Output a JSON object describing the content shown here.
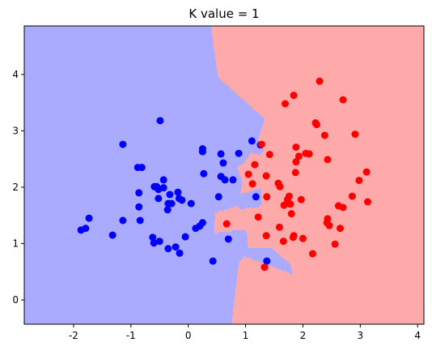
{
  "chart_data": {
    "type": "scatter",
    "title": "K value = 1",
    "xlim": [
      -2.86,
      4.11
    ],
    "ylim": [
      -0.43,
      4.86
    ],
    "xticks": [
      -2,
      -1,
      0,
      1,
      2,
      3,
      4
    ],
    "yticks": [
      0,
      1,
      2,
      3,
      4
    ],
    "series": [
      {
        "color": "#0000ff",
        "region_color": "#aaaaff",
        "x": [
          -1.87,
          -1.79,
          -1.73,
          -1.32,
          -1.14,
          -1.14,
          -0.88,
          -0.81,
          -0.86,
          -0.86,
          -0.84,
          -0.59,
          -0.55,
          -0.52,
          -0.52,
          -0.5,
          -0.6,
          -0.62,
          -0.49,
          -0.43,
          -0.43,
          -0.36,
          -0.35,
          -0.35,
          -0.32,
          -0.29,
          -0.22,
          -0.18,
          -0.15,
          -0.11,
          -0.16,
          -0.05,
          0.05,
          0.13,
          0.2,
          0.25,
          0.25,
          0.25,
          0.27,
          0.43,
          0.53,
          0.57,
          0.57,
          0.64,
          0.61,
          0.7,
          0.78,
          0.88,
          1.11,
          1.18,
          1.26,
          1.37
        ],
        "y": [
          1.24,
          1.27,
          1.45,
          1.15,
          2.76,
          1.41,
          2.35,
          2.35,
          1.9,
          1.65,
          1.41,
          2.01,
          2.01,
          1.8,
          1.96,
          1.04,
          1.01,
          1.11,
          3.18,
          2.13,
          1.99,
          1.6,
          1.71,
          0.91,
          1.87,
          1.71,
          0.94,
          1.91,
          0.83,
          1.77,
          1.8,
          1.12,
          1.71,
          1.27,
          1.31,
          1.37,
          2.68,
          2.63,
          2.24,
          0.69,
          1.83,
          2.59,
          2.19,
          2.13,
          2.43,
          1.08,
          2.13,
          2.6,
          2.82,
          1.83,
          2.75,
          0.69
        ]
      },
      {
        "color": "#ff0000",
        "region_color": "#ffaaaa",
        "x": [
          0.67,
          1.05,
          1.16,
          1.12,
          1.22,
          1.28,
          1.36,
          1.37,
          1.36,
          1.42,
          1.33,
          1.57,
          1.6,
          1.59,
          1.66,
          1.69,
          1.73,
          1.67,
          1.76,
          1.78,
          1.84,
          1.8,
          1.84,
          1.87,
          1.88,
          1.88,
          1.93,
          1.83,
          1.97,
          2.0,
          2.05,
          2.11,
          2.17,
          2.22,
          2.24,
          2.29,
          2.38,
          2.42,
          2.43,
          2.43,
          2.46,
          2.56,
          2.62,
          2.65,
          2.7,
          2.7,
          2.86,
          2.91,
          2.98,
          3.11,
          3.13
        ],
        "y": [
          1.35,
          2.23,
          2.4,
          2.06,
          1.47,
          2.76,
          2.2,
          1.83,
          1.14,
          2.58,
          0.58,
          2.07,
          2.01,
          1.29,
          1.04,
          3.48,
          1.78,
          1.68,
          1.84,
          1.7,
          3.63,
          1.53,
          1.14,
          2.26,
          2.71,
          2.45,
          2.55,
          1.11,
          1.78,
          1.09,
          2.6,
          2.59,
          0.82,
          3.14,
          3.11,
          3.88,
          2.92,
          1.37,
          1.44,
          2.49,
          1.32,
          0.99,
          1.67,
          1.27,
          1.64,
          3.55,
          1.84,
          2.94,
          2.12,
          2.27,
          1.74
        ]
      }
    ]
  }
}
